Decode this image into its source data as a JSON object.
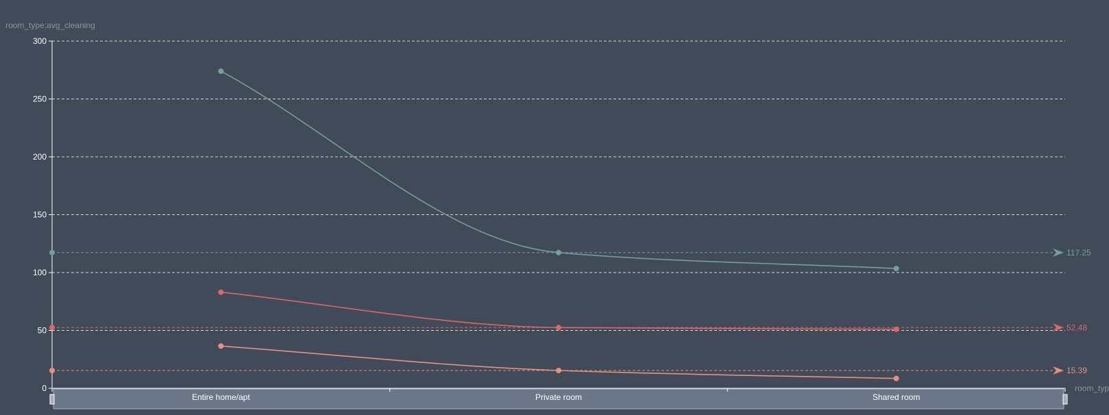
{
  "chart_data": {
    "type": "line",
    "title": "",
    "ylabel": "room_type:avg_cleaning",
    "xlabel": "room_typ",
    "categories": [
      "Entire home/apt",
      "Private room",
      "Shared room"
    ],
    "ylim": [
      0,
      300
    ],
    "yticks": [
      0,
      50,
      100,
      150,
      200,
      250,
      300
    ],
    "grid": true,
    "smooth": true,
    "series": [
      {
        "color": "#749f9e",
        "values": [
          274,
          117.25,
          103.5
        ],
        "markline_value": 117.25,
        "markline_label": "117.25"
      },
      {
        "color": "#e06666",
        "values": [
          83,
          52.48,
          51
        ],
        "markline_value": 52.48,
        "markline_label": "52.48"
      },
      {
        "color": "#e8927c",
        "values": [
          36.5,
          15.39,
          8.5
        ],
        "markline_value": 15.39,
        "markline_label": "15.39"
      }
    ]
  }
}
